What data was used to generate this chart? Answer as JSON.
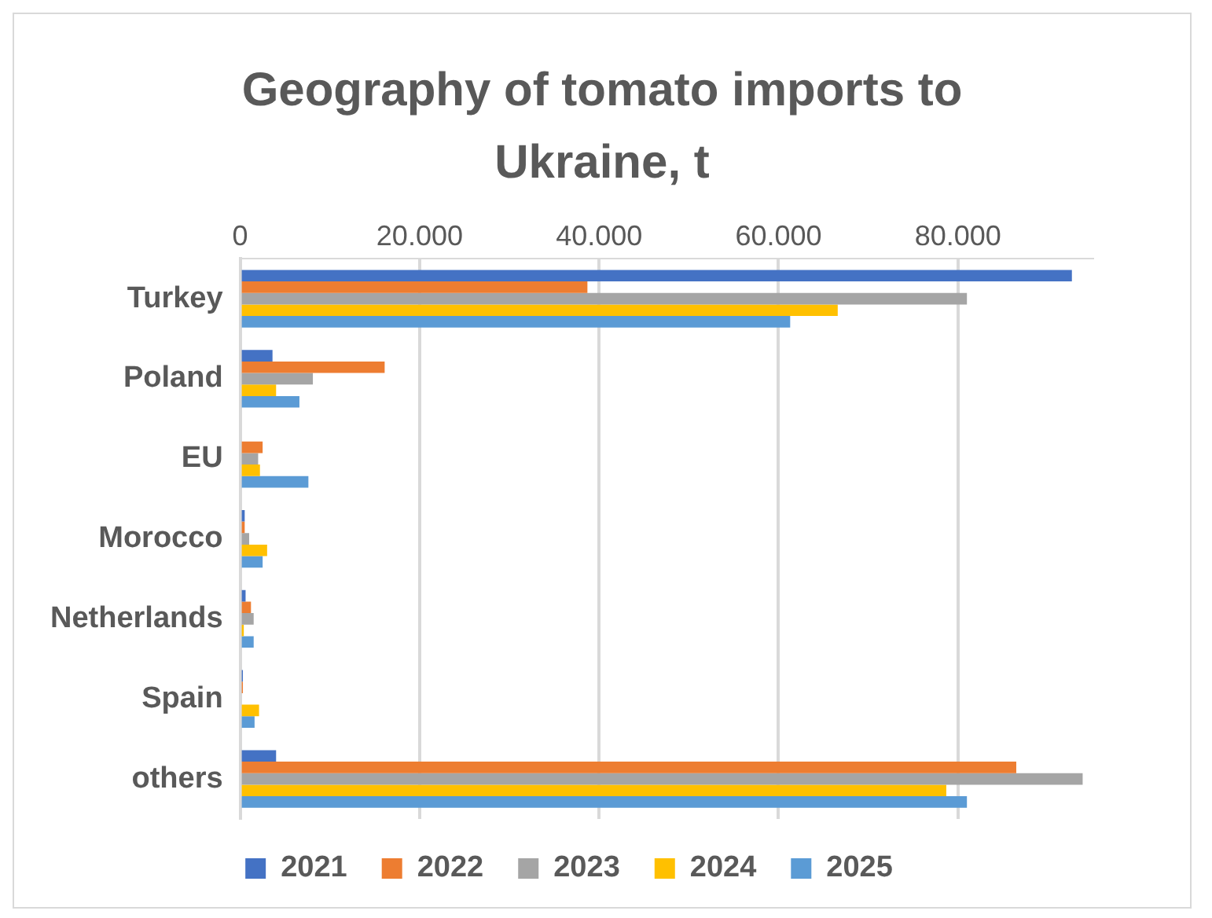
{
  "chart_data": {
    "type": "bar",
    "orientation": "horizontal",
    "title": "Geography of tomato imports to Ukraine, t",
    "categories": [
      "Turkey",
      "Poland",
      "EU",
      "Morocco",
      "Netherlands",
      "Spain",
      "others"
    ],
    "series": [
      {
        "name": "2021",
        "color": "#4472c4",
        "values": [
          92700,
          3600,
          0,
          500,
          600,
          300,
          4000
        ]
      },
      {
        "name": "2022",
        "color": "#ed7d31",
        "values": [
          38700,
          16100,
          2500,
          500,
          1200,
          300,
          86500
        ]
      },
      {
        "name": "2023",
        "color": "#a5a5a5",
        "values": [
          81000,
          8100,
          2000,
          1000,
          1500,
          null,
          93900
        ]
      },
      {
        "name": "2024",
        "color": "#ffc000",
        "values": [
          66600,
          4000,
          2200,
          3000,
          400,
          2100,
          78700
        ]
      },
      {
        "name": "2025",
        "color": "#5b9bd5",
        "values": [
          61300,
          6600,
          7600,
          2500,
          1500,
          1600,
          81000
        ]
      }
    ],
    "xlim": [
      0,
      95000
    ],
    "xticks": [
      0,
      {
        "value": 20000,
        "label": "20.000"
      },
      {
        "value": 40000,
        "label": "40.000"
      },
      {
        "value": 60000,
        "label": "60.000"
      },
      {
        "value": 80000,
        "label": "80.000"
      }
    ],
    "grid": "x",
    "legend": "bottom"
  }
}
